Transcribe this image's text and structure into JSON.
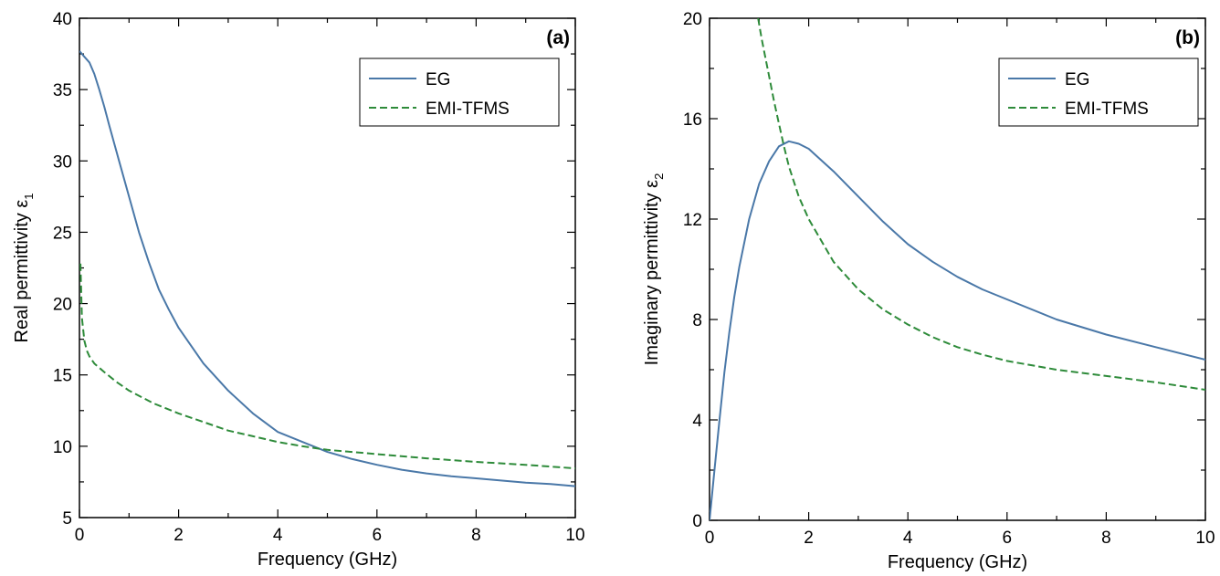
{
  "chart_data": [
    {
      "type": "line",
      "panel_label": "(a)",
      "xlabel": "Frequency (GHz)",
      "ylabel": "Real permittivity ε",
      "ylabel_subscript": "1",
      "xlim": [
        0,
        10
      ],
      "ylim": [
        5,
        40
      ],
      "xticks": [
        0,
        2,
        4,
        6,
        8,
        10
      ],
      "yticks": [
        5,
        10,
        15,
        20,
        25,
        30,
        35,
        40
      ],
      "grid": false,
      "legend": "top-right",
      "series": [
        {
          "name": "EG",
          "style": "solid",
          "color": "#4a78a8",
          "x": [
            0,
            0.1,
            0.2,
            0.3,
            0.4,
            0.5,
            0.6,
            0.8,
            1.0,
            1.2,
            1.4,
            1.6,
            1.8,
            2.0,
            2.5,
            3.0,
            3.5,
            4.0,
            4.5,
            5.0,
            5.5,
            6.0,
            6.5,
            7.0,
            7.5,
            8.0,
            8.5,
            9.0,
            9.5,
            10.0
          ],
          "y": [
            37.7,
            37.3,
            36.9,
            36.1,
            35.0,
            33.8,
            32.5,
            30.0,
            27.5,
            25.0,
            22.9,
            21.0,
            19.6,
            18.3,
            15.8,
            13.9,
            12.3,
            11.0,
            10.3,
            9.6,
            9.1,
            8.7,
            8.35,
            8.1,
            7.9,
            7.75,
            7.6,
            7.45,
            7.35,
            7.2
          ]
        },
        {
          "name": "EMI-TFMS",
          "style": "dashed",
          "color": "#2e8b3a",
          "x": [
            0.02,
            0.05,
            0.1,
            0.15,
            0.2,
            0.3,
            0.5,
            0.75,
            1.0,
            1.5,
            2.0,
            2.5,
            3.0,
            3.5,
            4.0,
            4.5,
            5.0,
            5.5,
            6.0,
            7.0,
            8.0,
            9.0,
            10.0
          ],
          "y": [
            22.8,
            19.0,
            17.4,
            16.7,
            16.3,
            15.8,
            15.2,
            14.5,
            13.9,
            13.0,
            12.3,
            11.7,
            11.1,
            10.7,
            10.3,
            10.0,
            9.75,
            9.6,
            9.45,
            9.15,
            8.9,
            8.7,
            8.45
          ]
        }
      ]
    },
    {
      "type": "line",
      "panel_label": "(b)",
      "xlabel": "Frequency (GHz)",
      "ylabel": "Imaginary permittivity ε",
      "ylabel_subscript": "2",
      "xlim": [
        0,
        10
      ],
      "ylim": [
        0,
        20
      ],
      "xticks": [
        0,
        2,
        4,
        6,
        8,
        10
      ],
      "yticks": [
        0,
        4,
        8,
        12,
        16,
        20
      ],
      "grid": false,
      "legend": "top-right",
      "series": [
        {
          "name": "EG",
          "style": "solid",
          "color": "#4a78a8",
          "x": [
            0,
            0.1,
            0.2,
            0.3,
            0.4,
            0.5,
            0.6,
            0.8,
            1.0,
            1.2,
            1.4,
            1.6,
            1.8,
            2.0,
            2.5,
            3.0,
            3.5,
            4.0,
            4.5,
            5.0,
            5.5,
            6.0,
            7.0,
            8.0,
            9.0,
            10.0
          ],
          "y": [
            0.0,
            2.0,
            4.0,
            5.9,
            7.5,
            8.9,
            10.1,
            12.0,
            13.4,
            14.3,
            14.9,
            15.1,
            15.0,
            14.8,
            13.9,
            12.9,
            11.9,
            11.0,
            10.3,
            9.7,
            9.2,
            8.8,
            8.0,
            7.4,
            6.9,
            6.4
          ]
        },
        {
          "name": "EMI-TFMS",
          "style": "dashed",
          "color": "#2e8b3a",
          "x": [
            0.98,
            1.05,
            1.1,
            1.2,
            1.3,
            1.4,
            1.5,
            1.6,
            1.8,
            2.0,
            2.5,
            3.0,
            3.5,
            4.0,
            4.5,
            5.0,
            5.5,
            6.0,
            7.0,
            8.0,
            9.0,
            10.0
          ],
          "y": [
            20.0,
            19.2,
            18.7,
            17.7,
            16.7,
            15.8,
            14.9,
            14.1,
            12.9,
            12.0,
            10.3,
            9.2,
            8.4,
            7.8,
            7.3,
            6.9,
            6.6,
            6.35,
            6.0,
            5.75,
            5.5,
            5.2
          ]
        }
      ]
    }
  ]
}
